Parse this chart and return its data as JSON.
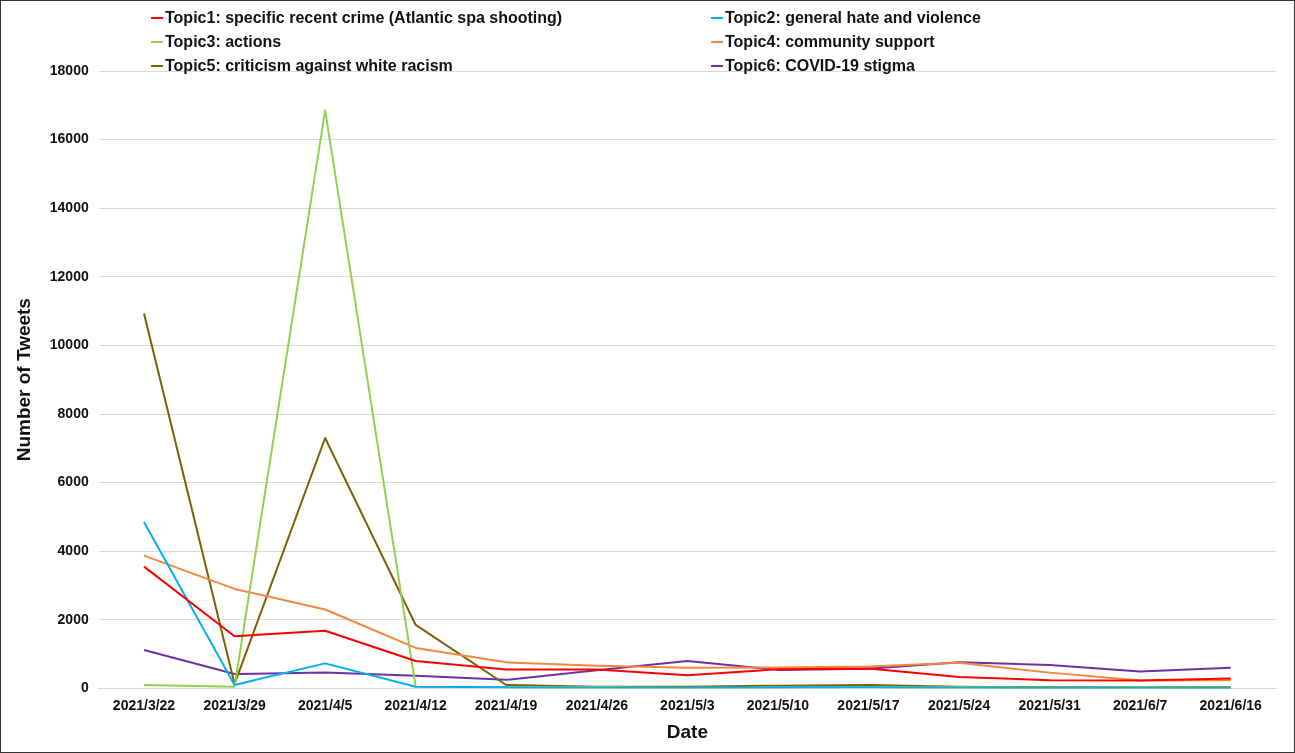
{
  "chart_data": {
    "type": "line",
    "xlabel": "Date",
    "ylabel": "Number of Tweets",
    "categories": [
      "2021/3/22",
      "2021/3/29",
      "2021/4/5",
      "2021/4/12",
      "2021/4/19",
      "2021/4/26",
      "2021/5/3",
      "2021/5/10",
      "2021/5/17",
      "2021/5/24",
      "2021/5/31",
      "2021/6/7",
      "2021/6/16"
    ],
    "series": [
      {
        "name": "Topic1: specific recent crime (Atlantic spa shooting)",
        "color": "#ff0000",
        "values": [
          3550,
          1520,
          1680,
          800,
          550,
          550,
          380,
          560,
          580,
          330,
          240,
          230,
          290
        ]
      },
      {
        "name": "Topic2: general hate and violence",
        "color": "#00b0f0",
        "values": [
          4850,
          100,
          730,
          50,
          30,
          20,
          20,
          30,
          30,
          20,
          10,
          10,
          10
        ]
      },
      {
        "name": "Topic3: actions",
        "color": "#92d050",
        "values": [
          100,
          50,
          16850,
          50,
          30,
          30,
          20,
          20,
          30,
          30,
          20,
          30,
          20
        ]
      },
      {
        "name": "Topic4: community support",
        "color": "#f4873d",
        "values": [
          3870,
          2900,
          2300,
          1180,
          760,
          660,
          600,
          610,
          640,
          750,
          460,
          230,
          240
        ]
      },
      {
        "name": "Topic5: criticism against white racism",
        "color": "#7f6000",
        "values": [
          10930,
          130,
          7300,
          1850,
          100,
          50,
          50,
          80,
          100,
          50,
          30,
          40,
          30
        ]
      },
      {
        "name": "Topic6: COVID-19 stigma",
        "color": "#7030a0",
        "values": [
          1120,
          420,
          460,
          370,
          250,
          530,
          800,
          540,
          570,
          760,
          680,
          490,
          600
        ]
      }
    ],
    "ylim": [
      0,
      18000
    ],
    "yticks": [
      0,
      2000,
      4000,
      6000,
      8000,
      10000,
      12000,
      14000,
      16000,
      18000
    ],
    "grid": "y",
    "legend": "top",
    "marker": "none",
    "line_style": "solid"
  }
}
